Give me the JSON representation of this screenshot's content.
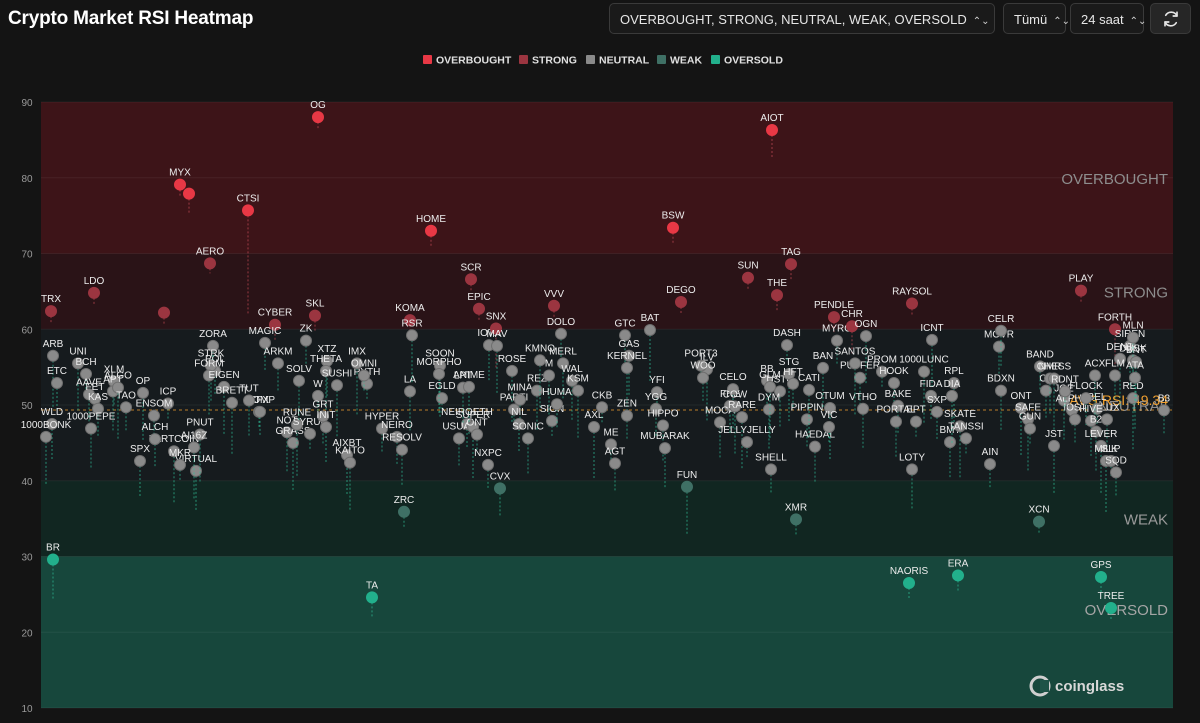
{
  "title": "Crypto Market RSI Heatmap",
  "controls": {
    "zone_filter": "OVERBOUGHT, STRONG, NEUTRAL, WEAK, OVERSOLD",
    "coin_filter": "Tümü",
    "timeframe": "24 saat"
  },
  "icons": {
    "refresh": "refresh-icon",
    "chevron": "chevron-updown-icon",
    "watermark": "coinglass-logo"
  },
  "watermark": "coinglass",
  "colors": {
    "background": "#141414",
    "overbought": "#e83845",
    "strong": "#9b3540",
    "neutral": "#8a8a8a",
    "weak": "#3f7065",
    "oversold": "#22b08c",
    "average": "#f0a030"
  },
  "chart_data": {
    "type": "scatter",
    "ylim": [
      10,
      90
    ],
    "y_ticks": [
      10,
      20,
      30,
      40,
      50,
      60,
      70,
      80,
      90
    ],
    "legend_position": "top-center",
    "legend": [
      "OVERBOUGHT",
      "STRONG",
      "NEUTRAL",
      "WEAK",
      "OVERSOLD"
    ],
    "zones": [
      {
        "name": "OVERBOUGHT",
        "from": 70,
        "to": 90
      },
      {
        "name": "STRONG",
        "from": 60,
        "to": 70
      },
      {
        "name": "NEUTRAL",
        "from": 40,
        "to": 60
      },
      {
        "name": "WEAK",
        "from": 30,
        "to": 40
      },
      {
        "name": "OVERSOLD",
        "from": 10,
        "to": 30
      }
    ],
    "average_label": "AVG RSI: 49.34",
    "average_rsi": 49.34,
    "points": [
      {
        "label": "OG",
        "rsi": 88
      },
      {
        "label": "AIOT",
        "rsi": 86.3
      },
      {
        "label": "MYX",
        "rsi": 79.1
      },
      {
        "label": "",
        "rsi": 77.9
      },
      {
        "label": "CTSI",
        "rsi": 75.7
      },
      {
        "label": "BSW",
        "rsi": 73.4
      },
      {
        "label": "HOME",
        "rsi": 73
      },
      {
        "label": "AERO",
        "rsi": 68.7
      },
      {
        "label": "TAG",
        "rsi": 68.6
      },
      {
        "label": "SUN",
        "rsi": 66.8
      },
      {
        "label": "SCR",
        "rsi": 66.6
      },
      {
        "label": "PLAY",
        "rsi": 65.1
      },
      {
        "label": "LDO",
        "rsi": 64.8
      },
      {
        "label": "THE",
        "rsi": 64.5
      },
      {
        "label": "DEGO",
        "rsi": 63.6
      },
      {
        "label": "RAYSOL",
        "rsi": 63.4
      },
      {
        "label": "VVV",
        "rsi": 63.1
      },
      {
        "label": "EPIC",
        "rsi": 62.7
      },
      {
        "label": "TRX",
        "rsi": 62.4
      },
      {
        "label": "",
        "rsi": 62.2
      },
      {
        "label": "SKL",
        "rsi": 61.8
      },
      {
        "label": "PENDLE",
        "rsi": 61.6
      },
      {
        "label": "KOMA",
        "rsi": 61.2
      },
      {
        "label": "CYBER",
        "rsi": 60.6
      },
      {
        "label": "XMR",
        "rsi": 34.9
      },
      {
        "label": "XCN",
        "rsi": 34.6
      },
      {
        "label": "ZRC",
        "rsi": 35.9
      },
      {
        "label": "ERA",
        "rsi": 27.5
      },
      {
        "label": "GPS",
        "rsi": 27.3
      },
      {
        "label": "NAORIS",
        "rsi": 26.5
      },
      {
        "label": "TA",
        "rsi": 24.6
      },
      {
        "label": "TREE",
        "rsi": 23.2
      },
      {
        "label": "BR",
        "rsi": 29.6
      },
      {
        "label": "UNI",
        "rsi": 55.5
      },
      {
        "label": "ARB",
        "rsi": 56.5
      },
      {
        "label": "BCH",
        "rsi": 54.1
      },
      {
        "label": "XLM",
        "rsi": 53.1
      },
      {
        "label": "ETC",
        "rsi": 52.9
      },
      {
        "label": "AAVE",
        "rsi": 51.4
      },
      {
        "label": "APT",
        "rsi": 51.8
      },
      {
        "label": "OP",
        "rsi": 51.6
      },
      {
        "label": "ALGO",
        "rsi": 52.3
      },
      {
        "label": "FET",
        "rsi": 50.8
      },
      {
        "label": "TAO",
        "rsi": 49.7
      },
      {
        "label": "KAS",
        "rsi": 49.5
      },
      {
        "label": "WLD",
        "rsi": 47.5
      },
      {
        "label": "1000PEPE",
        "rsi": 46.9
      },
      {
        "label": "1000BONK",
        "rsi": 45.8
      },
      {
        "label": "FARTCOIN",
        "rsi": 43.9
      },
      {
        "label": "ICP",
        "rsi": 50.2
      },
      {
        "label": "ENSOM",
        "rsi": 48.6
      },
      {
        "label": "ALCH",
        "rsi": 45.5
      },
      {
        "label": "SPX",
        "rsi": 42.6
      },
      {
        "label": "VIRTUAL",
        "rsi": 41.3
      },
      {
        "label": "PNUT",
        "rsi": 46.1
      },
      {
        "label": "AI16Z",
        "rsi": 44.4
      },
      {
        "label": "MKR",
        "rsi": 42.1
      },
      {
        "label": "POL",
        "rsi": 54.5
      },
      {
        "label": "ZORA",
        "rsi": 57.8
      },
      {
        "label": "STRK",
        "rsi": 55.2
      },
      {
        "label": "FORM",
        "rsi": 53.9
      },
      {
        "label": "EIGEN",
        "rsi": 52.4
      },
      {
        "label": "BRETT",
        "rsi": 50.3
      },
      {
        "label": "CFX",
        "rsi": 49.1
      },
      {
        "label": "COMP",
        "rsi": 49.1
      },
      {
        "label": "MAGIC",
        "rsi": 58.2
      },
      {
        "label": "TUT",
        "rsi": 50.6
      },
      {
        "label": "NOT",
        "rsi": 46.4
      },
      {
        "label": "GRASS",
        "rsi": 45
      },
      {
        "label": "RUNE",
        "rsi": 47.4
      },
      {
        "label": "SYRUP",
        "rsi": 46.2
      },
      {
        "label": "ZK",
        "rsi": 58.5
      },
      {
        "label": "ARKM",
        "rsi": 55.5
      },
      {
        "label": "XTZ",
        "rsi": 55.8
      },
      {
        "label": "SOLV",
        "rsi": 53.2
      },
      {
        "label": "THETA",
        "rsi": 54.5
      },
      {
        "label": "SUSHI",
        "rsi": 52.6
      },
      {
        "label": "PYTH",
        "rsi": 52.8
      },
      {
        "label": "W",
        "rsi": 51.2
      },
      {
        "label": "GRT",
        "rsi": 48.5
      },
      {
        "label": "INIT",
        "rsi": 47.1
      },
      {
        "label": "AIXBT",
        "rsi": 43.4
      },
      {
        "label": "KAITO",
        "rsi": 42.4
      },
      {
        "label": "IMX",
        "rsi": 55.5
      },
      {
        "label": "OMNI",
        "rsi": 53.9
      },
      {
        "label": "HYPER",
        "rsi": 46.9
      },
      {
        "label": "NEIRO",
        "rsi": 45.8
      },
      {
        "label": "RESOLV",
        "rsi": 44.1
      },
      {
        "label": "LA",
        "rsi": 51.8
      },
      {
        "label": "RSR",
        "rsi": 59.2
      },
      {
        "label": "SOON",
        "rsi": 55.2
      },
      {
        "label": "EGLD",
        "rsi": 50.9
      },
      {
        "label": "NEIROETH",
        "rsi": 47.5
      },
      {
        "label": "USUAL",
        "rsi": 45.6
      },
      {
        "label": "LPT",
        "rsi": 52.3
      },
      {
        "label": "MORPHO",
        "rsi": 54.1
      },
      {
        "label": "ANIME",
        "rsi": 52.4
      },
      {
        "label": "SUPER",
        "rsi": 47.1
      },
      {
        "label": "ONT",
        "rsi": 46.1
      },
      {
        "label": "NXPC",
        "rsi": 42.1
      },
      {
        "label": "CVX",
        "rsi": 39
      },
      {
        "label": "IOTX",
        "rsi": 57.9
      },
      {
        "label": "SNX",
        "rsi": 60.1
      },
      {
        "label": "MAV",
        "rsi": 57.8
      },
      {
        "label": "ROSE",
        "rsi": 54.5
      },
      {
        "label": "PARTI",
        "rsi": 49.4
      },
      {
        "label": "MINA",
        "rsi": 50.7
      },
      {
        "label": "NIL",
        "rsi": 47.5
      },
      {
        "label": "SONIC",
        "rsi": 45.6
      },
      {
        "label": "REZ",
        "rsi": 51.9
      },
      {
        "label": "KMNO",
        "rsi": 55.9
      },
      {
        "label": "M",
        "rsi": 53.9
      },
      {
        "label": "SIGN",
        "rsi": 47.9
      },
      {
        "label": "HUMA",
        "rsi": 50.1
      },
      {
        "label": "DOLO",
        "rsi": 59.4
      },
      {
        "label": "MERL",
        "rsi": 55.5
      },
      {
        "label": "WAL",
        "rsi": 53.2
      },
      {
        "label": "KSM",
        "rsi": 51.9
      },
      {
        "label": "AXL",
        "rsi": 47.1
      },
      {
        "label": "CKB",
        "rsi": 49.7
      },
      {
        "label": "ME",
        "rsi": 44.8
      },
      {
        "label": "AGT",
        "rsi": 42.3
      },
      {
        "label": "GTC",
        "rsi": 59.2
      },
      {
        "label": "GAS",
        "rsi": 56.5
      },
      {
        "label": "KERNEL",
        "rsi": 54.9
      },
      {
        "label": "BAT",
        "rsi": 59.9
      },
      {
        "label": "YFI",
        "rsi": 51.7
      },
      {
        "label": "ZEN",
        "rsi": 48.6
      },
      {
        "label": "YGG",
        "rsi": 49.5
      },
      {
        "label": "HIPPO",
        "rsi": 47.3
      },
      {
        "label": "MUBARAK",
        "rsi": 44.3
      },
      {
        "label": "FUN",
        "rsi": 39.2
      },
      {
        "label": "ILV",
        "rsi": 54.7
      },
      {
        "label": "PORT3",
        "rsi": 55.2
      },
      {
        "label": "WOO",
        "rsi": 53.6
      },
      {
        "label": "FHE",
        "rsi": 49.9
      },
      {
        "label": "MOCA",
        "rsi": 47.7
      },
      {
        "label": "CELO",
        "rsi": 52.1
      },
      {
        "label": "COW",
        "rsi": 49.8
      },
      {
        "label": "RARE",
        "rsi": 48.4
      },
      {
        "label": "JELLYJELLY",
        "rsi": 45.1
      },
      {
        "label": "SHELL",
        "rsi": 41.5
      },
      {
        "label": "BB",
        "rsi": 53.2
      },
      {
        "label": "USTC",
        "rsi": 51.8
      },
      {
        "label": "DYM",
        "rsi": 49.4
      },
      {
        "label": "STG",
        "rsi": 54.1
      },
      {
        "label": "GLM",
        "rsi": 52.4
      },
      {
        "label": "DASH",
        "rsi": 57.9
      },
      {
        "label": "HFT",
        "rsi": 52.8
      },
      {
        "label": "PIPPIN",
        "rsi": 48.1
      },
      {
        "label": "HAEDAL",
        "rsi": 44.5
      },
      {
        "label": "BAN",
        "rsi": 54.9
      },
      {
        "label": "CATI",
        "rsi": 52
      },
      {
        "label": "OTUM",
        "rsi": 49.6
      },
      {
        "label": "VIC",
        "rsi": 47.1
      },
      {
        "label": "MYRO",
        "rsi": 58.5
      },
      {
        "label": "CHR",
        "rsi": 60.4
      },
      {
        "label": "PUFFER",
        "rsi": 53.6
      },
      {
        "label": "VTHO",
        "rsi": 49.5
      },
      {
        "label": "OGN",
        "rsi": 59.1
      },
      {
        "label": "SANTOS",
        "rsi": 55.5
      },
      {
        "label": "PROM",
        "rsi": 54.4
      },
      {
        "label": "HOOK",
        "rsi": 52.9
      },
      {
        "label": "BAKE",
        "rsi": 49.9
      },
      {
        "label": "PORTAL",
        "rsi": 47.8
      },
      {
        "label": "LOTY",
        "rsi": 41.5
      },
      {
        "label": "ICNT",
        "rsi": 58.6
      },
      {
        "label": "1000LUNC",
        "rsi": 54.4
      },
      {
        "label": "EPT",
        "rsi": 47.8
      },
      {
        "label": "FIDA",
        "rsi": 51.2
      },
      {
        "label": "SXP",
        "rsi": 49.1
      },
      {
        "label": "BMT",
        "rsi": 45.1
      },
      {
        "label": "RPL",
        "rsi": 52.9
      },
      {
        "label": "DIA",
        "rsi": 51.2
      },
      {
        "label": "SKATE",
        "rsi": 47.2
      },
      {
        "label": "TANSSI",
        "rsi": 45.6
      },
      {
        "label": "AIN",
        "rsi": 42.2
      },
      {
        "label": "MOVR",
        "rsi": 57.7
      },
      {
        "label": "CELR",
        "rsi": 59.8
      },
      {
        "label": "BDXN",
        "rsi": 51.9
      },
      {
        "label": "ONT",
        "rsi": 49.6
      },
      {
        "label": "SAFE",
        "rsi": 48.1
      },
      {
        "label": "GUN",
        "rsi": 46.9
      },
      {
        "label": "BAND",
        "rsi": 55.1
      },
      {
        "label": "OL",
        "rsi": 51.9
      },
      {
        "label": "NMR",
        "rsi": 53.5
      },
      {
        "label": "JOE",
        "rsi": 50.6
      },
      {
        "label": "JST",
        "rsi": 44.6
      },
      {
        "label": "CHESS",
        "rsi": 53.5
      },
      {
        "label": "ALPHA",
        "rsi": 49.3
      },
      {
        "label": "IOST",
        "rsi": 48.1
      },
      {
        "label": "FLUX",
        "rsi": 48.1
      },
      {
        "label": "FORTH",
        "rsi": 60
      },
      {
        "label": "SIREN",
        "rsi": 57.8
      },
      {
        "label": "DENT",
        "rsi": 56.1
      },
      {
        "label": "RED",
        "rsi": 50.9
      },
      {
        "label": "BEL",
        "rsi": 49.5
      },
      {
        "label": "FLM",
        "rsi": 53.9
      },
      {
        "label": "DUSK",
        "rsi": 55.9
      },
      {
        "label": "MLN",
        "rsi": 58.9
      },
      {
        "label": "BNT",
        "rsi": 55.7
      },
      {
        "label": "ACX",
        "rsi": 53.9
      },
      {
        "label": "ATA",
        "rsi": 53.6
      },
      {
        "label": "RDNT",
        "rsi": 51.8
      },
      {
        "label": "B3",
        "rsi": 49.3
      },
      {
        "label": "FLOCK",
        "rsi": 50.9
      },
      {
        "label": "HIVE",
        "rsi": 47.9
      },
      {
        "label": "B2",
        "rsi": 46.5
      },
      {
        "label": "LEVER",
        "rsi": 44.6
      },
      {
        "label": "MILK",
        "rsi": 42.6
      },
      {
        "label": "SLP",
        "rsi": 42.6
      },
      {
        "label": "SQD",
        "rsi": 41.1
      }
    ]
  }
}
